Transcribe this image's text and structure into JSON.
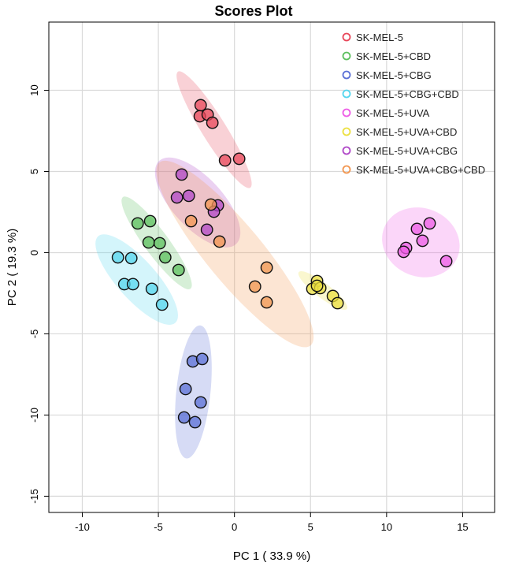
{
  "chart_data": {
    "type": "scatter",
    "title": "Scores Plot",
    "xlabel": "PC 1 ( 33.9 %)",
    "ylabel": "PC 2 ( 19.3 %)",
    "xlim": [
      -12.2,
      17.1
    ],
    "ylim": [
      -16,
      14.2
    ],
    "xticks": [
      -10,
      -5,
      0,
      5,
      10,
      15
    ],
    "yticks": [
      -15,
      -10,
      -5,
      0,
      5,
      10
    ],
    "grid": true,
    "legend_position": "top-right",
    "confidence_ellipses": true,
    "series": [
      {
        "name": "SK-MEL-5",
        "color": "#E8475A",
        "points": [
          [
            -2.22,
            9.08
          ],
          [
            -2.28,
            8.4
          ],
          [
            -1.76,
            8.5
          ],
          [
            -1.45,
            8.0
          ],
          [
            -0.62,
            5.68
          ],
          [
            0.31,
            5.78
          ]
        ]
      },
      {
        "name": "SK-MEL-5+CBD",
        "color": "#5CC05E",
        "points": [
          [
            -6.36,
            1.8
          ],
          [
            -5.54,
            1.94
          ],
          [
            -5.64,
            0.63
          ],
          [
            -4.91,
            0.58
          ],
          [
            -4.55,
            -0.29
          ],
          [
            -3.67,
            -1.07
          ]
        ]
      },
      {
        "name": "SK-MEL-5+CBG",
        "color": "#5B70D6",
        "points": [
          [
            -2.74,
            -6.7
          ],
          [
            -2.12,
            -6.55
          ],
          [
            -3.21,
            -8.4
          ],
          [
            -2.22,
            -9.22
          ],
          [
            -3.31,
            -10.15
          ],
          [
            -2.59,
            -10.44
          ]
        ]
      },
      {
        "name": "SK-MEL-5+CBG+CBD",
        "color": "#55D6EE",
        "points": [
          [
            -7.66,
            -0.29
          ],
          [
            -6.78,
            -0.34
          ],
          [
            -7.24,
            -1.94
          ],
          [
            -6.67,
            -1.94
          ],
          [
            -5.43,
            -2.23
          ],
          [
            -4.76,
            -3.2
          ]
        ]
      },
      {
        "name": "SK-MEL-5+UVA",
        "color": "#EE5CE6",
        "points": [
          [
            12.0,
            1.46
          ],
          [
            12.83,
            1.8
          ],
          [
            12.36,
            0.73
          ],
          [
            11.28,
            0.29
          ],
          [
            11.12,
            0.05
          ],
          [
            13.92,
            -0.53
          ]
        ]
      },
      {
        "name": "SK-MEL-5+UVA+CBD",
        "color": "#ECE040",
        "points": [
          [
            5.43,
            -1.75
          ],
          [
            5.12,
            -2.23
          ],
          [
            5.64,
            -2.18
          ],
          [
            5.43,
            -2.04
          ],
          [
            6.47,
            -2.67
          ],
          [
            6.78,
            -3.11
          ]
        ]
      },
      {
        "name": "SK-MEL-5+UVA+CBG",
        "color": "#B048C8",
        "points": [
          [
            -3.47,
            4.81
          ],
          [
            -3.78,
            3.4
          ],
          [
            -3.0,
            3.5
          ],
          [
            -1.09,
            2.91
          ],
          [
            -1.35,
            2.52
          ],
          [
            -1.81,
            1.41
          ]
        ]
      },
      {
        "name": "SK-MEL-5+UVA+CBG+CBD",
        "color": "#F29650",
        "points": [
          [
            -1.55,
            2.96
          ],
          [
            -2.85,
            1.94
          ],
          [
            -0.98,
            0.68
          ],
          [
            2.12,
            -0.92
          ],
          [
            1.35,
            -2.09
          ],
          [
            2.12,
            -3.06
          ]
        ]
      }
    ]
  }
}
